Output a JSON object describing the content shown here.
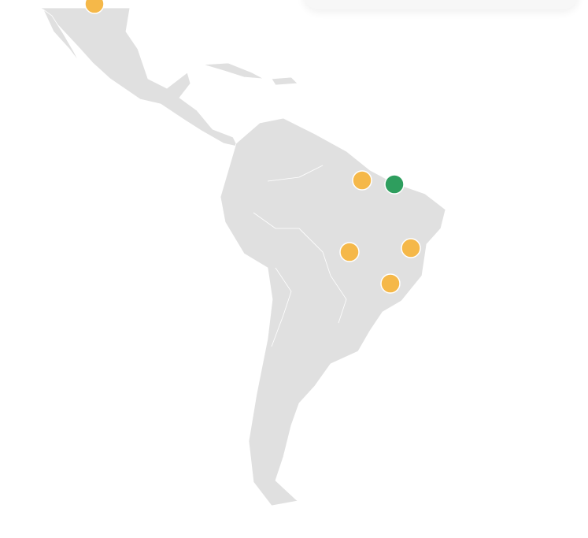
{
  "map": {
    "land_color": "#e0e0e0",
    "border_color": "#ffffff",
    "markers": [
      {
        "status": "warning",
        "color": "#f5b849"
      },
      {
        "status": "warning",
        "color": "#f5b849"
      },
      {
        "status": "ok",
        "color": "#2e9e5e"
      },
      {
        "status": "warning",
        "color": "#f5b849"
      },
      {
        "status": "warning",
        "color": "#f5b849"
      },
      {
        "status": "warning",
        "color": "#f5b849"
      }
    ]
  }
}
